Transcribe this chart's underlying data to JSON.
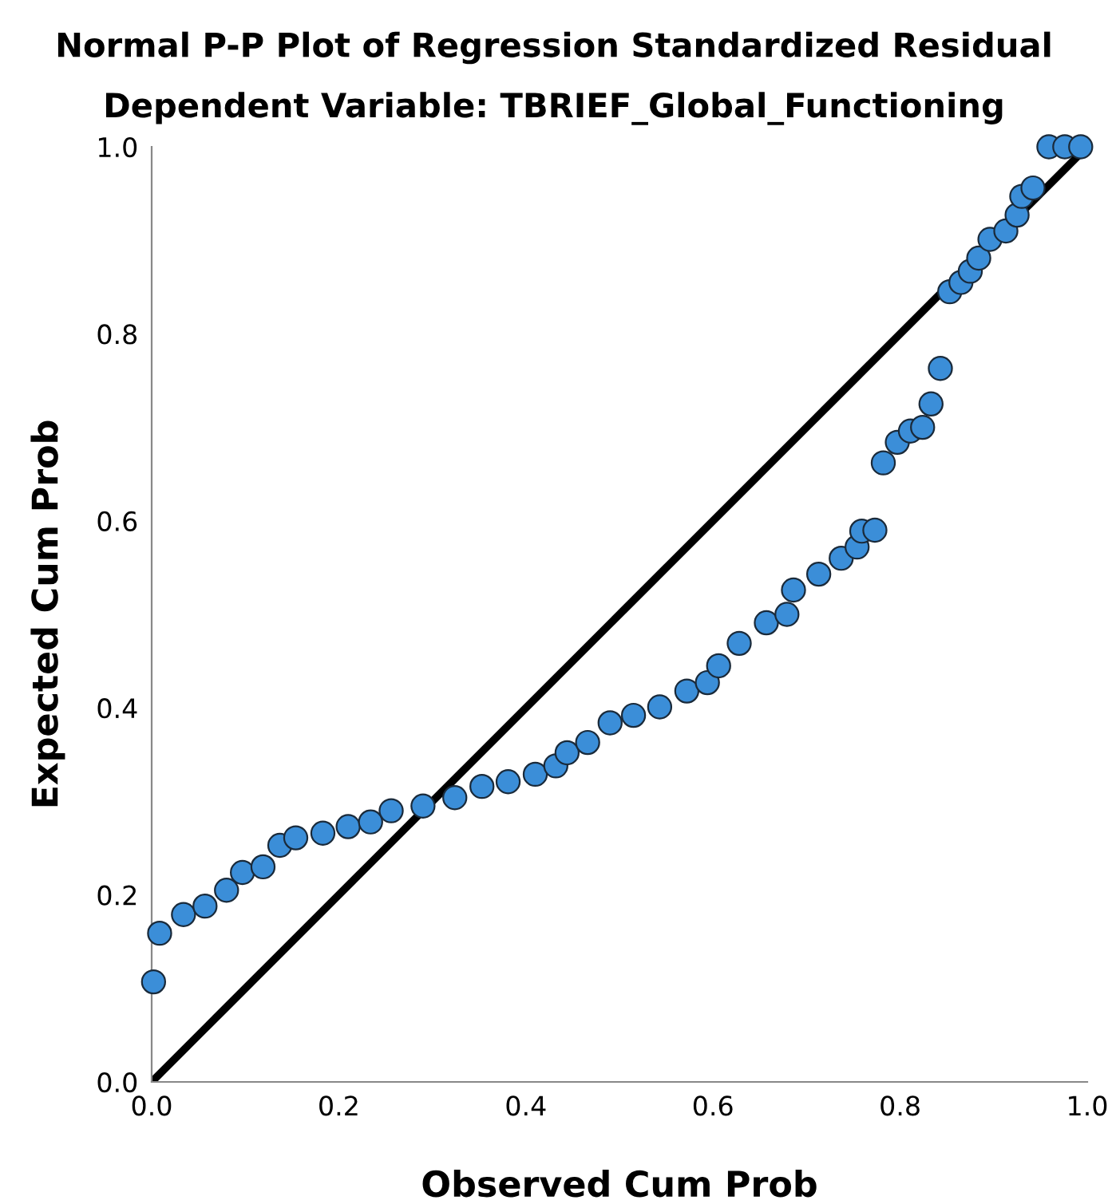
{
  "chart_data": {
    "type": "scatter",
    "title": "Normal P-P Plot of Regression Standardized Residual",
    "subtitle": "Dependent Variable: TBRIEF_Global_Functioning",
    "xlabel": "Observed Cum Prob",
    "ylabel": "Expected Cum Prob",
    "xlim": [
      0,
      1
    ],
    "ylim": [
      0,
      1
    ],
    "xticks": [
      {
        "value": 0,
        "label": "0.0"
      },
      0.2,
      0.4,
      0.6,
      0.8,
      {
        "value": 1,
        "label": "1.0"
      }
    ],
    "yticks": [
      {
        "value": 0,
        "label": "0.0"
      },
      0.2,
      0.4,
      0.6,
      0.8,
      {
        "value": 1,
        "label": "1.0"
      }
    ],
    "grid": false,
    "legend": false,
    "series": [
      {
        "marker": "circle",
        "color": "#3b8ed8",
        "x": [
          0.002,
          0.0085,
          0.034,
          0.057,
          0.08,
          0.097,
          0.119,
          0.137,
          0.154,
          0.183,
          0.21,
          0.234,
          0.256,
          0.29,
          0.324,
          0.353,
          0.381,
          0.41,
          0.432,
          0.444,
          0.466,
          0.49,
          0.515,
          0.543,
          0.572,
          0.594,
          0.606,
          0.628,
          0.657,
          0.679,
          0.686,
          0.713,
          0.737,
          0.754,
          0.759,
          0.773,
          0.782,
          0.797,
          0.811,
          0.824,
          0.833,
          0.843,
          0.853,
          0.865,
          0.875,
          0.884,
          0.896,
          0.913,
          0.925,
          0.93,
          0.942,
          0.959,
          0.976,
          0.993
        ],
        "values": [
          0.107,
          0.159,
          0.179,
          0.188,
          0.205,
          0.224,
          0.23,
          0.253,
          0.261,
          0.266,
          0.273,
          0.278,
          0.29,
          0.295,
          0.304,
          0.316,
          0.321,
          0.329,
          0.338,
          0.352,
          0.363,
          0.384,
          0.392,
          0.401,
          0.418,
          0.427,
          0.445,
          0.469,
          0.491,
          0.5,
          0.526,
          0.543,
          0.56,
          0.572,
          0.589,
          0.59,
          0.662,
          0.684,
          0.696,
          0.7,
          0.725,
          0.763,
          0.845,
          0.855,
          0.867,
          0.881,
          0.901,
          0.91,
          0.927,
          0.947,
          0.956,
          1.0,
          1.0,
          1.0
        ]
      },
      {
        "type": "line",
        "color": "#000000",
        "line_style": "solid",
        "x": [
          0,
          1
        ],
        "values": [
          0,
          1
        ]
      }
    ]
  }
}
